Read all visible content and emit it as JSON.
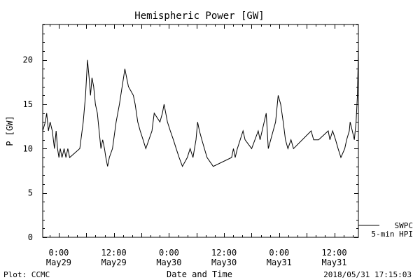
{
  "footer": {
    "plot_credit": "Plot: CCMC",
    "timestamp": "2018/05/31 17:15:03"
  },
  "legend": {
    "line1": "SWPC",
    "line2": "5-min HPI"
  },
  "chart_data": {
    "type": "line",
    "title": "Hemispheric Power [GW]",
    "xlabel": "Date and Time",
    "ylabel": "P [GW]",
    "ylim": [
      0,
      24
    ],
    "xlim": [
      "2018-05-28T20:30",
      "2018-05-31T17:15"
    ],
    "yticks": [
      0,
      5,
      10,
      15,
      20
    ],
    "xticks": [
      {
        "at": "2018-05-29T00:00",
        "line1": "0:00",
        "line2": "May29"
      },
      {
        "at": "2018-05-29T12:00",
        "line1": "12:00",
        "line2": "May29"
      },
      {
        "at": "2018-05-30T00:00",
        "line1": "0:00",
        "line2": "May30"
      },
      {
        "at": "2018-05-30T12:00",
        "line1": "12:00",
        "line2": "May30"
      },
      {
        "at": "2018-05-31T00:00",
        "line1": "0:00",
        "line2": "May31"
      },
      {
        "at": "2018-05-31T12:00",
        "line1": "12:00",
        "line2": "May31"
      }
    ],
    "legend_position": "bottom-right outside",
    "grid": false,
    "series": [
      {
        "name": "SWPC 5-min HPI",
        "color": "#000000",
        "points": [
          [
            "2018-05-28T20:30",
            12
          ],
          [
            "2018-05-28T21:05",
            13
          ],
          [
            "2018-05-28T21:22",
            14
          ],
          [
            "2018-05-28T21:45",
            12
          ],
          [
            "2018-05-28T22:07",
            13
          ],
          [
            "2018-05-28T22:35",
            12
          ],
          [
            "2018-05-28T23:04",
            10
          ],
          [
            "2018-05-28T23:26",
            12
          ],
          [
            "2018-05-28T23:44",
            10
          ],
          [
            "2018-05-29T00:02",
            9
          ],
          [
            "2018-05-29T00:20",
            10
          ],
          [
            "2018-05-29T00:42",
            9
          ],
          [
            "2018-05-29T01:10",
            10
          ],
          [
            "2018-05-29T01:34",
            9
          ],
          [
            "2018-05-29T01:58",
            10
          ],
          [
            "2018-05-29T02:22",
            9
          ],
          [
            "2018-05-29T04:35",
            10
          ],
          [
            "2018-05-29T05:20",
            13
          ],
          [
            "2018-05-29T05:50",
            16
          ],
          [
            "2018-05-29T06:15",
            20
          ],
          [
            "2018-05-29T06:36",
            18
          ],
          [
            "2018-05-29T06:55",
            16
          ],
          [
            "2018-05-29T07:14",
            18
          ],
          [
            "2018-05-29T07:36",
            17
          ],
          [
            "2018-05-29T07:59",
            15
          ],
          [
            "2018-05-29T08:24",
            14
          ],
          [
            "2018-05-29T08:47",
            12
          ],
          [
            "2018-05-29T09:11",
            10
          ],
          [
            "2018-05-29T09:34",
            11
          ],
          [
            "2018-05-29T09:58",
            10
          ],
          [
            "2018-05-29T10:15",
            9
          ],
          [
            "2018-05-29T10:38",
            8
          ],
          [
            "2018-05-29T11:01",
            9
          ],
          [
            "2018-05-29T11:42",
            10
          ],
          [
            "2018-05-29T12:29",
            13
          ],
          [
            "2018-05-29T13:12",
            15
          ],
          [
            "2018-05-29T13:48",
            17
          ],
          [
            "2018-05-29T14:06",
            18
          ],
          [
            "2018-05-29T14:24",
            19
          ],
          [
            "2018-05-29T14:47",
            18
          ],
          [
            "2018-05-29T15:10",
            17
          ],
          [
            "2018-05-29T16:14",
            16
          ],
          [
            "2018-05-29T16:38",
            15
          ],
          [
            "2018-05-29T17:12",
            13
          ],
          [
            "2018-05-29T17:44",
            12
          ],
          [
            "2018-05-29T18:22",
            11
          ],
          [
            "2018-05-29T18:57",
            10
          ],
          [
            "2018-05-29T20:18",
            12
          ],
          [
            "2018-05-29T20:47",
            14
          ],
          [
            "2018-05-29T22:02",
            13
          ],
          [
            "2018-05-29T22:34",
            14
          ],
          [
            "2018-05-29T22:56",
            15
          ],
          [
            "2018-05-29T23:40",
            13
          ],
          [
            "2018-05-30T00:17",
            12
          ],
          [
            "2018-05-30T00:58",
            11
          ],
          [
            "2018-05-30T01:34",
            10
          ],
          [
            "2018-05-30T02:13",
            9
          ],
          [
            "2018-05-30T02:56",
            8
          ],
          [
            "2018-05-30T04:00",
            9
          ],
          [
            "2018-05-30T04:36",
            10
          ],
          [
            "2018-05-30T05:14",
            9
          ],
          [
            "2018-05-30T05:53",
            11
          ],
          [
            "2018-05-30T06:14",
            13
          ],
          [
            "2018-05-30T06:38",
            12
          ],
          [
            "2018-05-30T07:10",
            11
          ],
          [
            "2018-05-30T07:43",
            10
          ],
          [
            "2018-05-30T08:18",
            9
          ],
          [
            "2018-05-30T09:38",
            8
          ],
          [
            "2018-05-30T13:39",
            9
          ],
          [
            "2018-05-30T14:02",
            10
          ],
          [
            "2018-05-30T14:25",
            9
          ],
          [
            "2018-05-30T14:54",
            10
          ],
          [
            "2018-05-30T16:08",
            12
          ],
          [
            "2018-05-30T16:34",
            11
          ],
          [
            "2018-05-30T18:00",
            10
          ],
          [
            "2018-05-30T19:26",
            12
          ],
          [
            "2018-05-30T19:50",
            11
          ],
          [
            "2018-05-30T21:10",
            14
          ],
          [
            "2018-05-30T21:38",
            10
          ],
          [
            "2018-05-30T22:41",
            12
          ],
          [
            "2018-05-30T23:13",
            13
          ],
          [
            "2018-05-30T23:47",
            16
          ],
          [
            "2018-05-31T00:20",
            15
          ],
          [
            "2018-05-31T00:53",
            13
          ],
          [
            "2018-05-31T01:22",
            11
          ],
          [
            "2018-05-31T01:54",
            10
          ],
          [
            "2018-05-31T02:34",
            11
          ],
          [
            "2018-05-31T03:07",
            10
          ],
          [
            "2018-05-31T06:58",
            12
          ],
          [
            "2018-05-31T07:31",
            11
          ],
          [
            "2018-05-31T08:35",
            11
          ],
          [
            "2018-05-31T10:41",
            12
          ],
          [
            "2018-05-31T11:03",
            11
          ],
          [
            "2018-05-31T11:38",
            12
          ],
          [
            "2018-05-31T12:17",
            11
          ],
          [
            "2018-05-31T12:50",
            10
          ],
          [
            "2018-05-31T13:26",
            9
          ],
          [
            "2018-05-31T14:17",
            10
          ],
          [
            "2018-05-31T14:41",
            11
          ],
          [
            "2018-05-31T15:16",
            12
          ],
          [
            "2018-05-31T15:27",
            13
          ],
          [
            "2018-05-31T15:55",
            12
          ],
          [
            "2018-05-31T16:22",
            11
          ],
          [
            "2018-05-31T16:45",
            13
          ],
          [
            "2018-05-31T17:02",
            16
          ],
          [
            "2018-05-31T17:12",
            20
          ],
          [
            "2018-05-31T17:15",
            21.5
          ]
        ]
      }
    ]
  }
}
